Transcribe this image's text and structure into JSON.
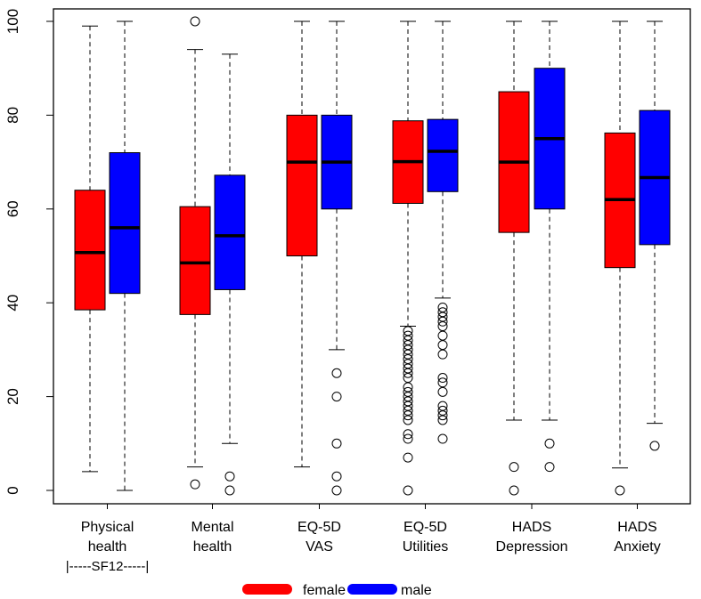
{
  "chart_data": {
    "type": "box",
    "title": "",
    "xlabel": "",
    "ylabel": "",
    "ylim": [
      0,
      100
    ],
    "yticks": [
      0,
      20,
      40,
      60,
      80,
      100
    ],
    "grid": false,
    "group_note": "|-----SF12-----|",
    "categories": [
      {
        "line1": "Physical",
        "line2": "health"
      },
      {
        "line1": "Mental",
        "line2": "health"
      },
      {
        "line1": "EQ-5D",
        "line2": "VAS"
      },
      {
        "line1": "EQ-5D",
        "line2": "Utilities"
      },
      {
        "line1": "HADS",
        "line2": "Depression"
      },
      {
        "line1": "HADS",
        "line2": "Anxiety"
      }
    ],
    "legend": {
      "placement": "bottom",
      "entries": [
        {
          "name": "female",
          "color": "#ff0000"
        },
        {
          "name": "male",
          "color": "#0000ff"
        }
      ]
    },
    "series": [
      {
        "name": "female",
        "color": "#ff0000",
        "boxes": [
          {
            "low": 4,
            "q1": 38.5,
            "median": 50.7,
            "q3": 64,
            "high": 99,
            "outliers": []
          },
          {
            "low": 5,
            "q1": 37.5,
            "median": 48.5,
            "q3": 60.5,
            "high": 94,
            "outliers": [
              1.3,
              100
            ]
          },
          {
            "low": 5,
            "q1": 50,
            "median": 70,
            "q3": 80,
            "high": 100,
            "outliers": []
          },
          {
            "low": 35,
            "q1": 61.2,
            "median": 70.1,
            "q3": 78.8,
            "high": 100,
            "outliers": [
              34,
              33,
              32,
              31,
              30,
              29,
              28,
              27,
              26,
              25,
              24,
              22,
              21,
              20,
              19,
              18,
              17,
              16,
              15,
              12,
              11,
              7,
              0
            ]
          },
          {
            "low": 15,
            "q1": 55,
            "median": 70,
            "q3": 85,
            "high": 100,
            "outliers": [
              5,
              0
            ]
          },
          {
            "low": 4.8,
            "q1": 47.5,
            "median": 62,
            "q3": 76.2,
            "high": 100,
            "outliers": [
              0
            ]
          }
        ]
      },
      {
        "name": "male",
        "color": "#0000ff",
        "boxes": [
          {
            "low": 0,
            "q1": 42,
            "median": 56,
            "q3": 72,
            "high": 100,
            "outliers": []
          },
          {
            "low": 10,
            "q1": 42.8,
            "median": 54.3,
            "q3": 67.2,
            "high": 93,
            "outliers": [
              3,
              0
            ]
          },
          {
            "low": 30,
            "q1": 60,
            "median": 70,
            "q3": 80,
            "high": 100,
            "outliers": [
              25,
              20,
              10,
              3,
              0
            ]
          },
          {
            "low": 41,
            "q1": 63.7,
            "median": 72.3,
            "q3": 79.1,
            "high": 100,
            "outliers": [
              39,
              38,
              37,
              36,
              35,
              33,
              31,
              29,
              24,
              23,
              21,
              18,
              17,
              16,
              15,
              11
            ]
          },
          {
            "low": 15,
            "q1": 60,
            "median": 75,
            "q3": 90,
            "high": 100,
            "outliers": [
              10,
              5
            ]
          },
          {
            "low": 14.3,
            "q1": 52.4,
            "median": 66.7,
            "q3": 81,
            "high": 100,
            "outliers": [
              9.5
            ]
          }
        ]
      }
    ]
  }
}
